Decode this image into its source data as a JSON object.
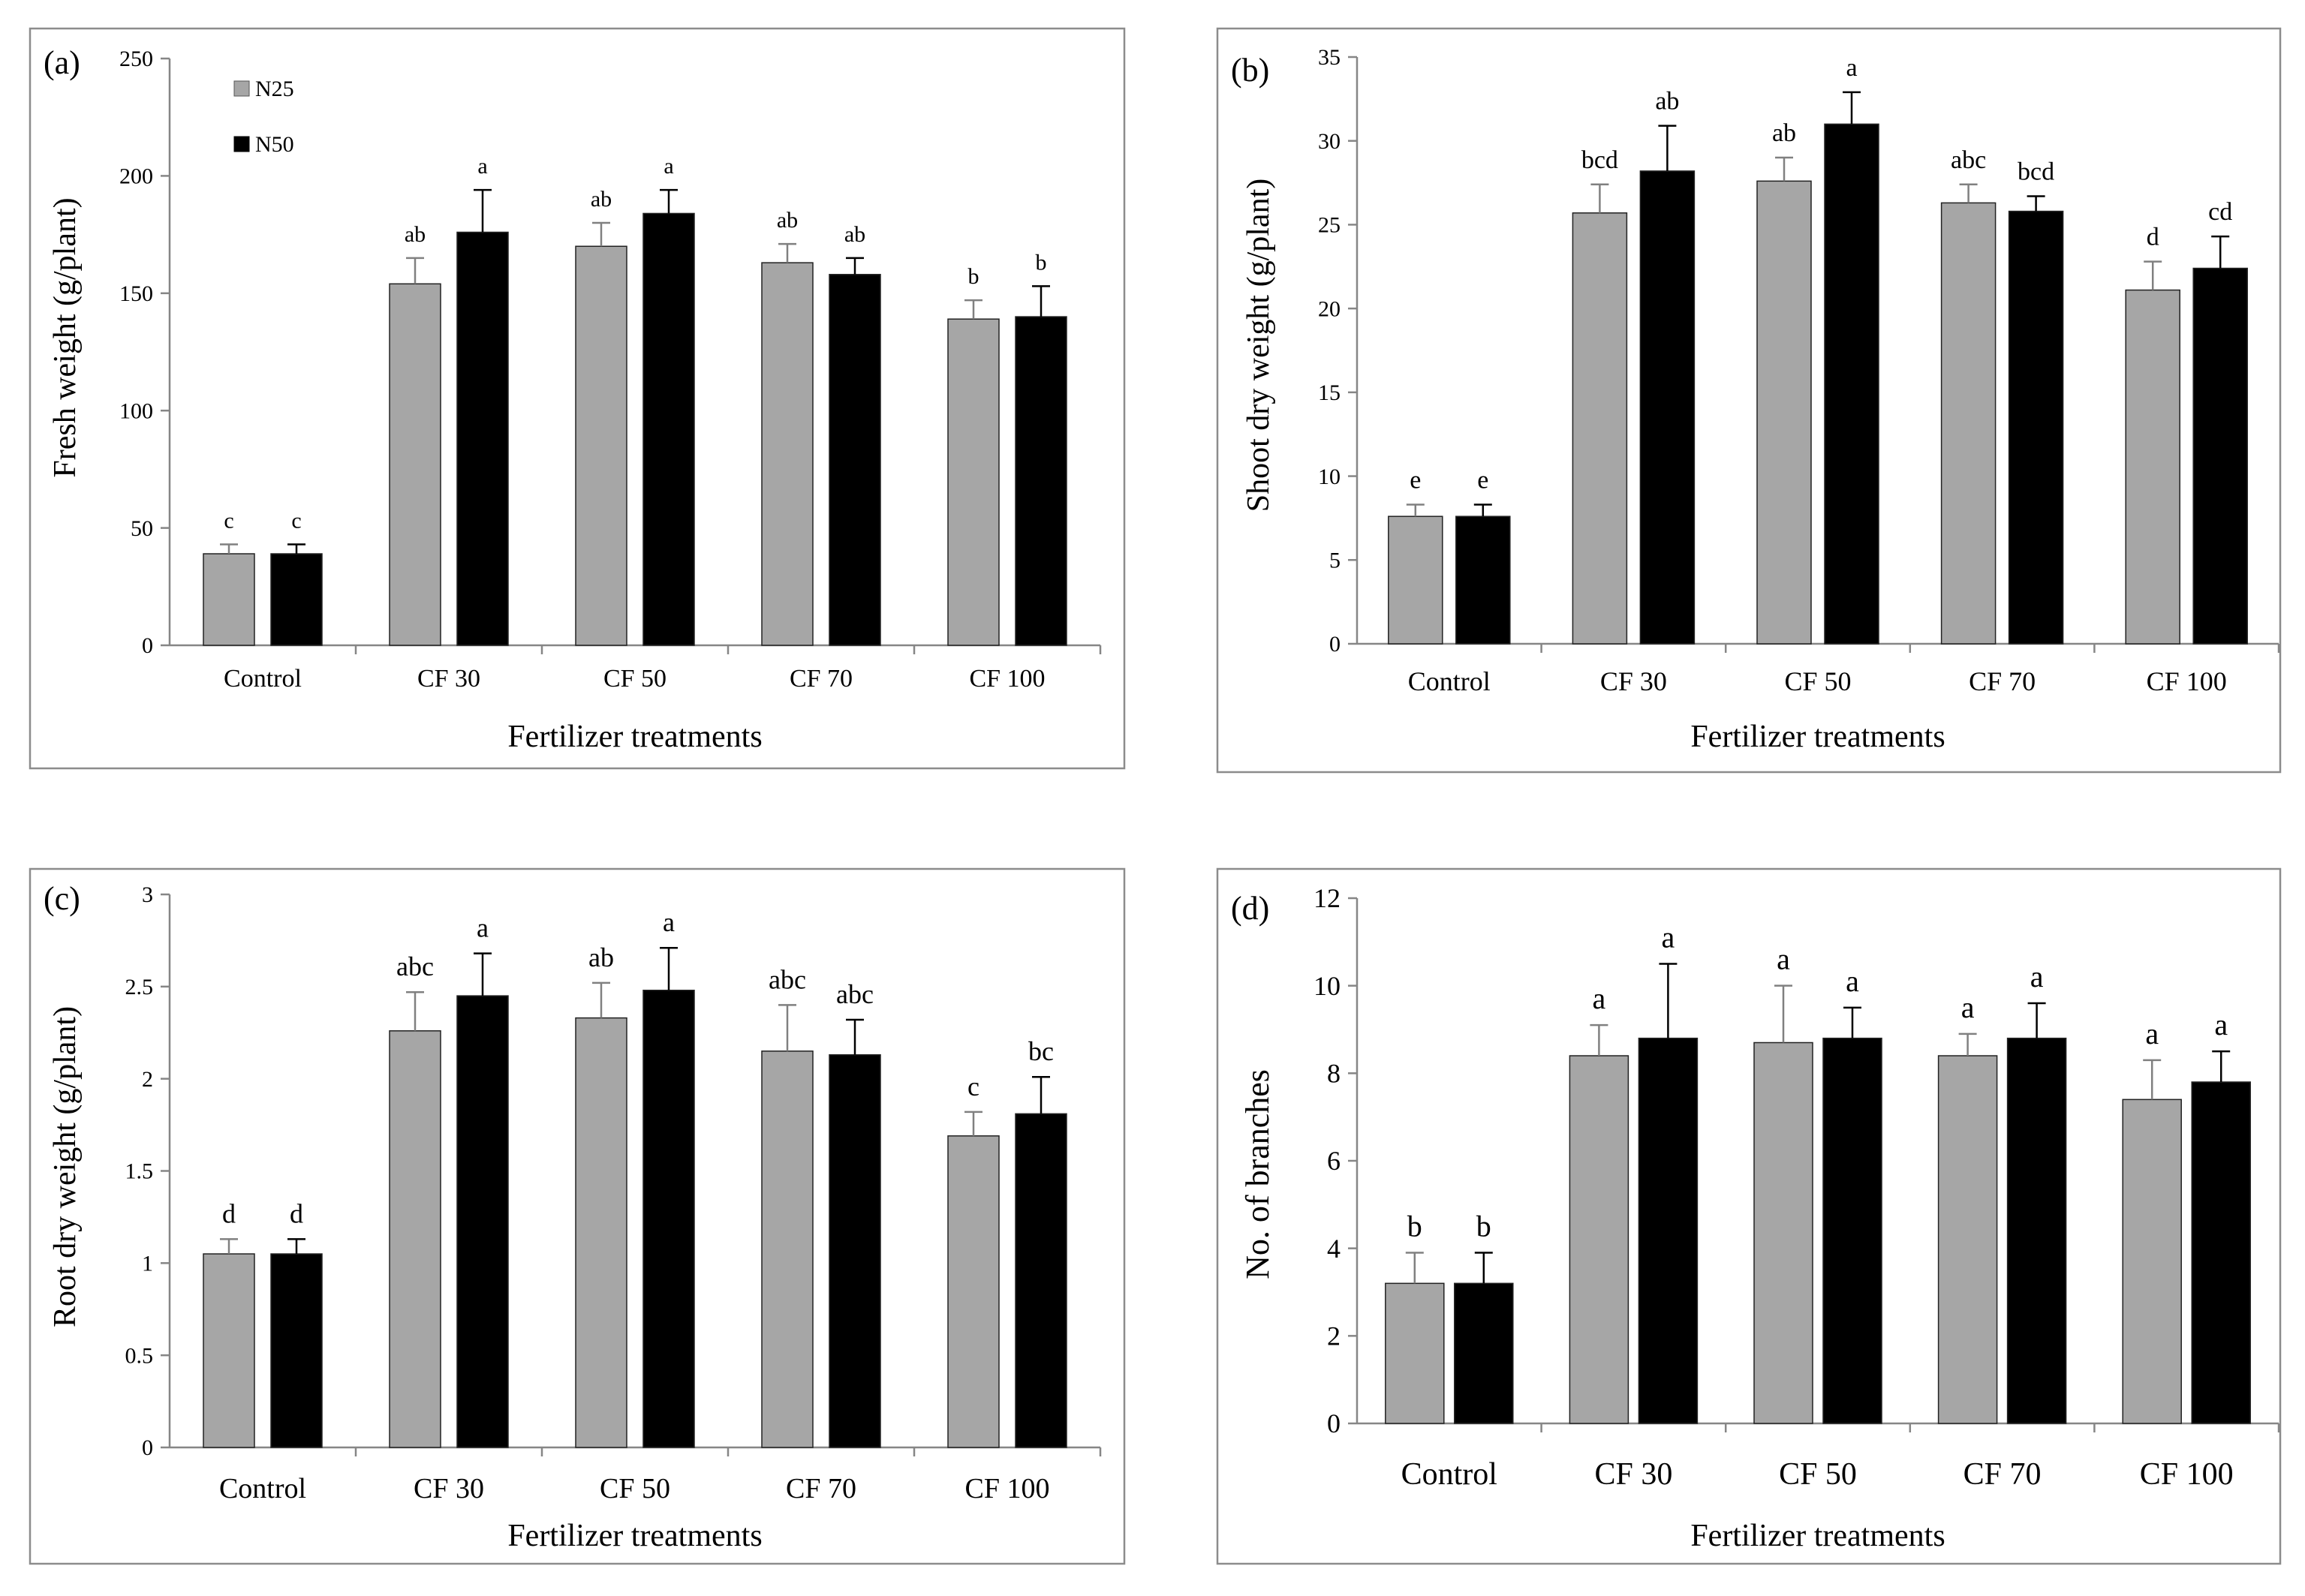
{
  "colors": {
    "n25": "#a6a6a6",
    "n50": "#000000",
    "axis": "#868686",
    "frame": "#8c8c8c",
    "text": "#000000",
    "errbar": "#808080"
  },
  "legend": {
    "n25": "N25",
    "n50": "N50"
  },
  "chart_data": [
    {
      "panel": "(a)",
      "type": "bar",
      "title": "",
      "xlabel": "Fertilizer treatments",
      "ylabel": "Fresh weight (g/plant)",
      "categories": [
        "Control",
        "CF 30",
        "CF 50",
        "CF 70",
        "CF 100"
      ],
      "ylim": [
        0,
        250
      ],
      "yticks": [
        0,
        50,
        100,
        150,
        200,
        250
      ],
      "series": [
        {
          "name": "N25",
          "values": [
            39,
            154,
            170,
            163,
            139
          ],
          "errors": [
            4,
            11,
            10,
            8,
            8
          ],
          "letters": [
            "c",
            "ab",
            "ab",
            "ab",
            "b"
          ]
        },
        {
          "name": "N50",
          "values": [
            39,
            176,
            184,
            158,
            140
          ],
          "errors": [
            4,
            18,
            10,
            7,
            13
          ],
          "letters": [
            "c",
            "a",
            "a",
            "ab",
            "b"
          ]
        }
      ],
      "legend_position": "top-left"
    },
    {
      "panel": "(b)",
      "type": "bar",
      "title": "",
      "xlabel": "Fertilizer treatments",
      "ylabel": "Shoot dry weight (g/plant)",
      "categories": [
        "Control",
        "CF 30",
        "CF 50",
        "CF 70",
        "CF 100"
      ],
      "ylim": [
        0,
        35
      ],
      "yticks": [
        0,
        5,
        10,
        15,
        20,
        25,
        30,
        35
      ],
      "series": [
        {
          "name": "N25",
          "values": [
            7.6,
            25.7,
            27.6,
            26.3,
            21.1
          ],
          "errors": [
            0.7,
            1.7,
            1.4,
            1.1,
            1.7
          ],
          "letters": [
            "e",
            "bcd",
            "ab",
            "abc",
            "d"
          ]
        },
        {
          "name": "N50",
          "values": [
            7.6,
            28.2,
            31.0,
            25.8,
            22.4
          ],
          "errors": [
            0.7,
            2.7,
            1.9,
            0.9,
            1.9
          ],
          "letters": [
            "e",
            "ab",
            "a",
            "bcd",
            "cd"
          ]
        }
      ]
    },
    {
      "panel": "(c)",
      "type": "bar",
      "title": "",
      "xlabel": "Fertilizer treatments",
      "ylabel": "Root dry weight (g/plant)",
      "categories": [
        "Control",
        "CF 30",
        "CF 50",
        "CF 70",
        "CF 100"
      ],
      "ylim": [
        0,
        3
      ],
      "yticks": [
        "0",
        "0.5",
        "1",
        "1.5",
        "2",
        "2.5",
        "3"
      ],
      "series": [
        {
          "name": "N25",
          "values": [
            1.05,
            2.26,
            2.33,
            2.15,
            1.69
          ],
          "errors": [
            0.08,
            0.21,
            0.19,
            0.25,
            0.13
          ],
          "letters": [
            "d",
            "abc",
            "ab",
            "abc",
            "c"
          ]
        },
        {
          "name": "N50",
          "values": [
            1.05,
            2.45,
            2.48,
            2.13,
            1.81
          ],
          "errors": [
            0.08,
            0.23,
            0.23,
            0.19,
            0.2
          ],
          "letters": [
            "d",
            "a",
            "a",
            "abc",
            "bc"
          ]
        }
      ]
    },
    {
      "panel": "(d)",
      "type": "bar",
      "title": "",
      "xlabel": "Fertilizer treatments",
      "ylabel": "No. of branches",
      "categories": [
        "Control",
        "CF 30",
        "CF 50",
        "CF 70",
        "CF 100"
      ],
      "ylim": [
        0,
        12
      ],
      "yticks": [
        0,
        2,
        4,
        6,
        8,
        10,
        12
      ],
      "series": [
        {
          "name": "N25",
          "values": [
            3.2,
            8.4,
            8.7,
            8.4,
            7.4
          ],
          "errors": [
            0.7,
            0.7,
            1.3,
            0.5,
            0.9
          ],
          "letters": [
            "b",
            "a",
            "a",
            "a",
            "a"
          ]
        },
        {
          "name": "N50",
          "values": [
            3.2,
            8.8,
            8.8,
            8.8,
            7.8
          ],
          "errors": [
            0.7,
            1.7,
            0.7,
            0.8,
            0.7
          ],
          "letters": [
            "b",
            "a",
            "a",
            "a",
            "a"
          ]
        }
      ]
    }
  ]
}
